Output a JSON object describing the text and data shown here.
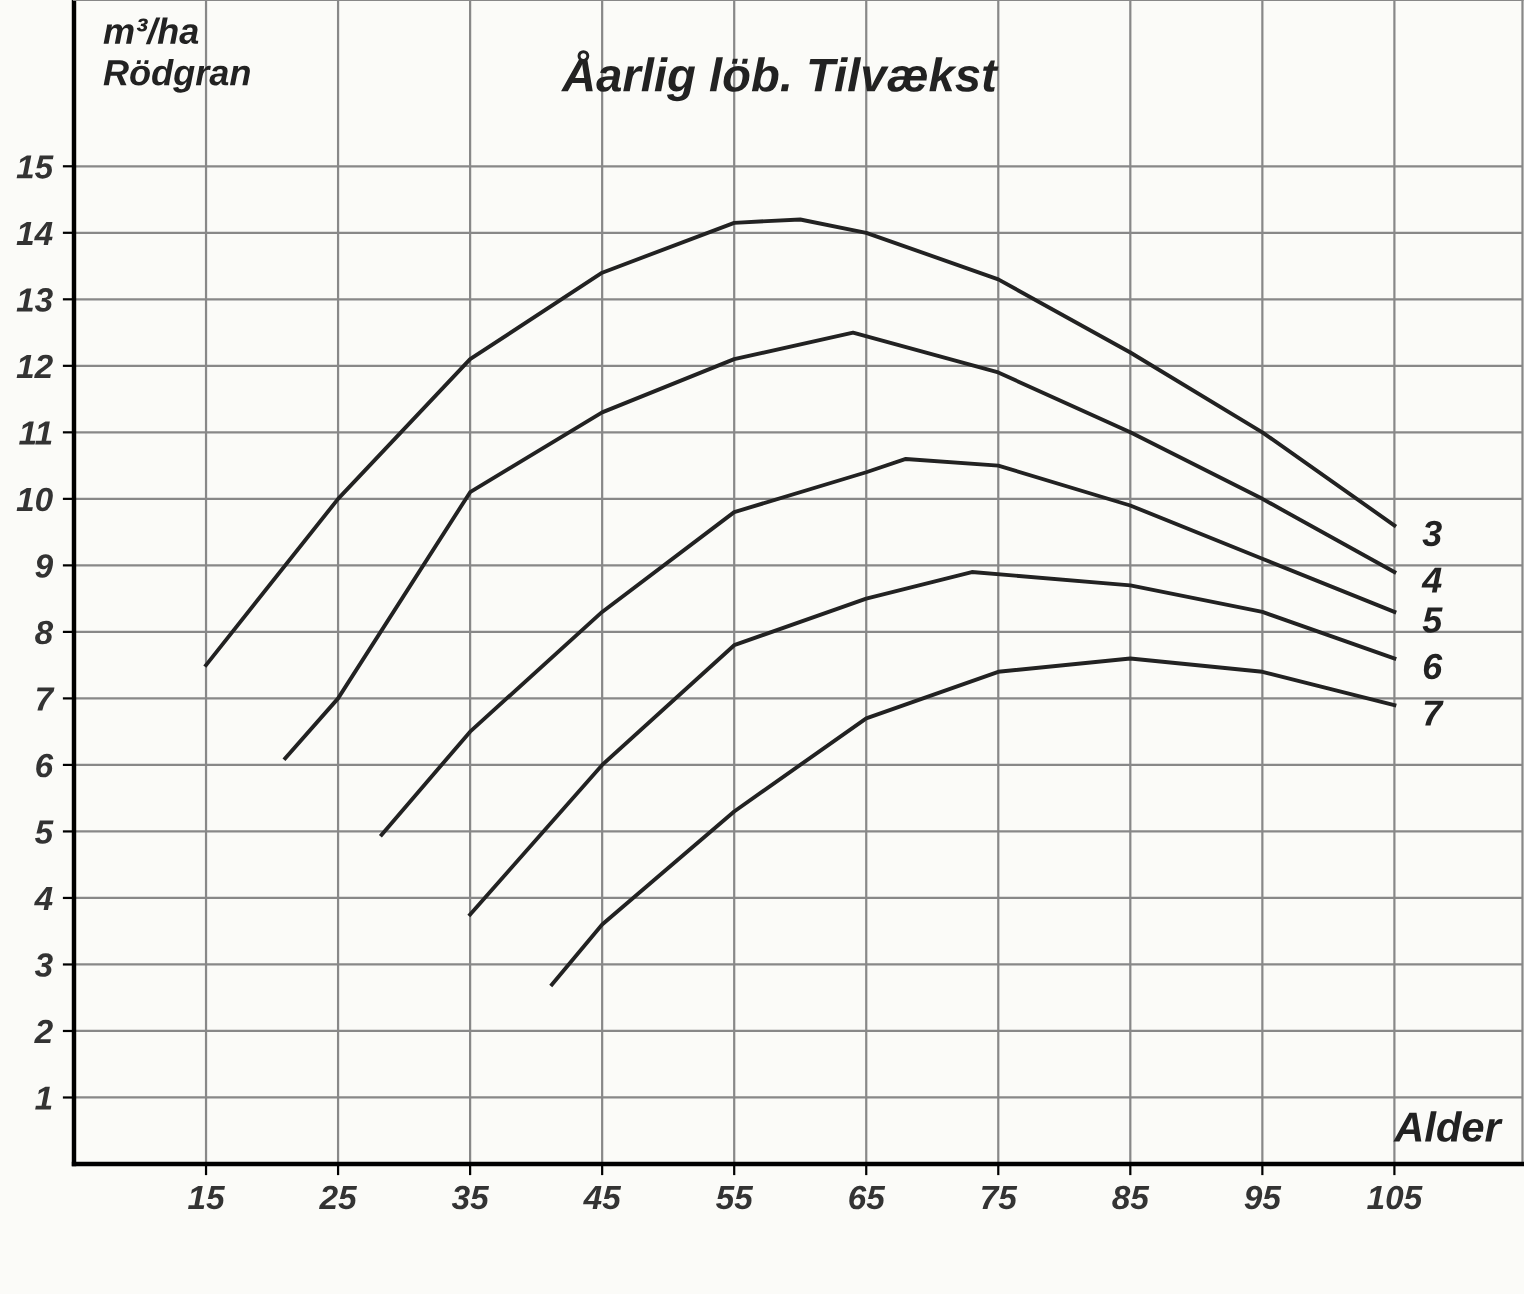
{
  "chart_data": {
    "type": "line",
    "title": "Åarlig löb. Tilvækst",
    "ylabel": "m³/ha\nRödgran",
    "xlabel": "Alder",
    "xlim": [
      5,
      114.7
    ],
    "ylim": [
      0,
      17.5
    ],
    "xticks": [
      15,
      25,
      35,
      45,
      55,
      65,
      75,
      85,
      95,
      105
    ],
    "yticks": [
      1,
      2,
      3,
      4,
      5,
      6,
      7,
      8,
      9,
      10,
      11,
      12,
      13,
      14,
      15
    ],
    "grid": true,
    "marker": "none",
    "line_style": "solid",
    "legend": false,
    "series": [
      {
        "name": "3",
        "color": "#222222",
        "x": [
          15,
          25,
          35,
          45,
          55,
          60,
          65,
          75,
          85,
          95,
          105
        ],
        "values": [
          7.5,
          10.0,
          12.1,
          13.4,
          14.15,
          14.2,
          14.0,
          13.3,
          12.2,
          11.0,
          9.6
        ]
      },
      {
        "name": "4",
        "color": "#222222",
        "x": [
          21,
          25,
          35,
          45,
          55,
          64,
          75,
          85,
          95,
          105
        ],
        "values": [
          6.1,
          7.0,
          10.1,
          11.3,
          12.1,
          12.5,
          11.9,
          11.0,
          10.0,
          8.9
        ]
      },
      {
        "name": "5",
        "color": "#222222",
        "x": [
          28.3,
          35,
          45,
          55,
          65,
          68,
          75,
          85,
          95,
          105
        ],
        "values": [
          4.95,
          6.5,
          8.3,
          9.8,
          10.4,
          10.6,
          10.5,
          9.9,
          9.1,
          8.3
        ]
      },
      {
        "name": "6",
        "color": "#222222",
        "x": [
          35,
          45,
          55,
          65,
          73,
          85,
          95,
          105
        ],
        "values": [
          3.75,
          6.0,
          7.8,
          8.5,
          8.9,
          8.7,
          8.3,
          7.6
        ]
      },
      {
        "name": "7",
        "color": "#222222",
        "x": [
          41.2,
          45,
          55,
          65,
          75,
          85,
          95,
          105
        ],
        "values": [
          2.7,
          3.6,
          5.3,
          6.7,
          7.4,
          7.6,
          7.4,
          6.9
        ]
      }
    ]
  }
}
